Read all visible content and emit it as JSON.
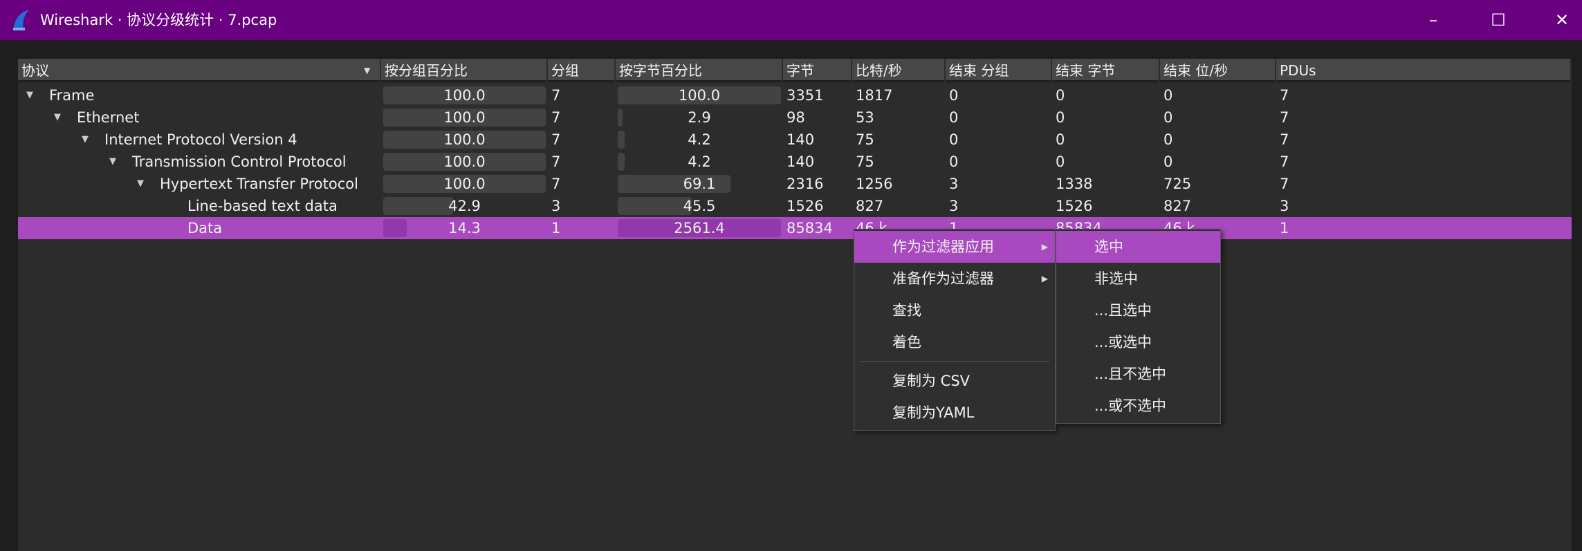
{
  "window": {
    "title": "Wireshark · 协议分级统计 · 7.pcap",
    "minimize": "–",
    "maximize": "☐",
    "close": "✕"
  },
  "columns": [
    "协议",
    "按分组百分比",
    "分组",
    "按字节百分比",
    "字节",
    "比特/秒",
    "结束 分组",
    "结束 字节",
    "结束 位/秒",
    "PDUs"
  ],
  "rows": [
    {
      "protocol": "Frame",
      "depth": 0,
      "expanded": true,
      "pct_packets": "100.0",
      "packets": "7",
      "pct_bytes": "100.0",
      "bytes": "3351",
      "bps": "1817",
      "end_packets": "0",
      "end_bytes": "0",
      "end_bps": "0",
      "pdus": "7"
    },
    {
      "protocol": "Ethernet",
      "depth": 1,
      "expanded": true,
      "pct_packets": "100.0",
      "packets": "7",
      "pct_bytes": "2.9",
      "bytes": "98",
      "bps": "53",
      "end_packets": "0",
      "end_bytes": "0",
      "end_bps": "0",
      "pdus": "7"
    },
    {
      "protocol": "Internet Protocol Version 4",
      "depth": 2,
      "expanded": true,
      "pct_packets": "100.0",
      "packets": "7",
      "pct_bytes": "4.2",
      "bytes": "140",
      "bps": "75",
      "end_packets": "0",
      "end_bytes": "0",
      "end_bps": "0",
      "pdus": "7"
    },
    {
      "protocol": "Transmission Control Protocol",
      "depth": 3,
      "expanded": true,
      "pct_packets": "100.0",
      "packets": "7",
      "pct_bytes": "4.2",
      "bytes": "140",
      "bps": "75",
      "end_packets": "0",
      "end_bytes": "0",
      "end_bps": "0",
      "pdus": "7"
    },
    {
      "protocol": "Hypertext Transfer Protocol",
      "depth": 4,
      "expanded": true,
      "pct_packets": "100.0",
      "packets": "7",
      "pct_bytes": "69.1",
      "bytes": "2316",
      "bps": "1256",
      "end_packets": "3",
      "end_bytes": "1338",
      "end_bps": "725",
      "pdus": "7"
    },
    {
      "protocol": "Line-based text data",
      "depth": 5,
      "expanded": false,
      "pct_packets": "42.9",
      "packets": "3",
      "pct_bytes": "45.5",
      "bytes": "1526",
      "bps": "827",
      "end_packets": "3",
      "end_bytes": "1526",
      "end_bps": "827",
      "pdus": "3"
    },
    {
      "protocol": "Data",
      "depth": 5,
      "expanded": false,
      "selected": true,
      "pct_packets": "14.3",
      "packets": "1",
      "pct_bytes": "2561.4",
      "bytes": "85834",
      "bps": "46 k",
      "end_packets": "1",
      "end_bytes": "85834",
      "end_bps": "46 k",
      "pdus": "1"
    }
  ],
  "context_menu": {
    "items": [
      {
        "label": "作为过滤器应用",
        "submenu": true,
        "highlighted": true
      },
      {
        "label": "准备作为过滤器",
        "submenu": true
      },
      {
        "label": "查找"
      },
      {
        "label": "着色"
      },
      {
        "separator": true
      },
      {
        "label": "复制为 CSV"
      },
      {
        "label": "复制为YAML"
      }
    ]
  },
  "submenu": {
    "items": [
      {
        "label": "选中",
        "highlighted": true
      },
      {
        "label": "非选中"
      },
      {
        "label": "...且选中"
      },
      {
        "label": "...或选中"
      },
      {
        "label": "...且不选中"
      },
      {
        "label": "...或不选中"
      }
    ]
  },
  "colors": {
    "titlebar": "#690080",
    "selection": "#a849c0",
    "header": "#474747",
    "background": "#2c2c2c"
  }
}
